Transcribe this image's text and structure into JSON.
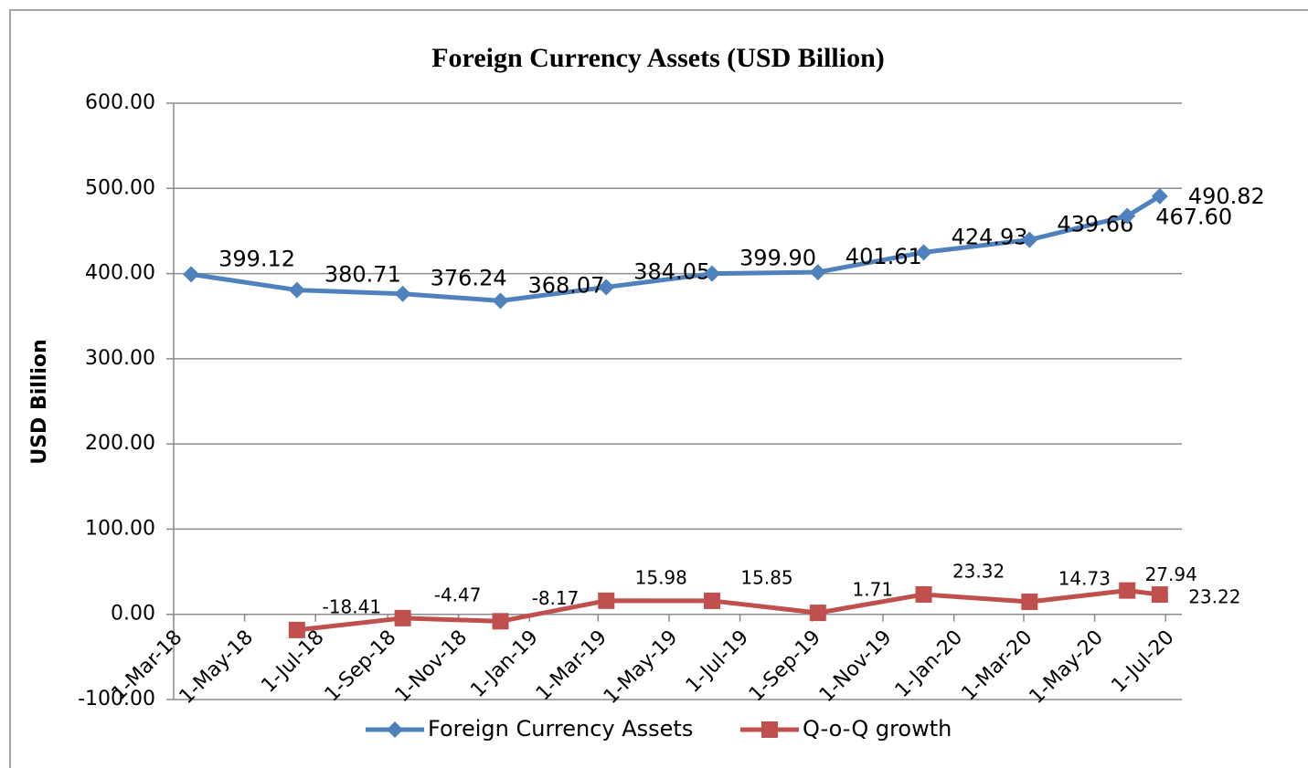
{
  "chart_data": {
    "type": "line",
    "title": "Foreign Currency Assets  (USD  Billion)",
    "ylabel": "USD Billion",
    "x": [
      "2018-03-16",
      "2018-06-15",
      "2018-09-14",
      "2018-12-07",
      "2019-03-08",
      "2019-06-07",
      "2019-09-06",
      "2019-12-06",
      "2020-03-06",
      "2020-05-29",
      "2020-06-26"
    ],
    "series": [
      {
        "name": "Foreign Currency Assets",
        "color": "#4f81bd",
        "marker": "diamond",
        "values": [
          399.12,
          380.71,
          376.24,
          368.07,
          384.05,
          399.9,
          401.61,
          424.93,
          439.66,
          467.6,
          490.82
        ],
        "value_labels": [
          "399.12",
          "380.71",
          "376.24",
          "368.07",
          "384.05",
          "399.90",
          "401.61",
          "424.93",
          "439.66",
          "467.60",
          "490.82"
        ]
      },
      {
        "name": "Q-o-Q growth",
        "color": "#c0504d",
        "marker": "square",
        "values": [
          null,
          -18.41,
          -4.47,
          -8.17,
          15.98,
          15.85,
          1.71,
          23.32,
          14.73,
          27.94,
          23.22
        ],
        "value_labels": [
          null,
          "-18.41",
          "-4.47",
          "-8.17",
          "15.98",
          "15.85",
          "1.71",
          "23.32",
          "14.73",
          "27.94",
          "23.22"
        ]
      }
    ],
    "xlim": [
      "2018-03-01",
      "2020-07-15"
    ],
    "xticks": [
      {
        "value": "2018-03-01",
        "label": "1-Mar-18"
      },
      {
        "value": "2018-05-01",
        "label": "1-May-18"
      },
      {
        "value": "2018-07-01",
        "label": "1-Jul-18"
      },
      {
        "value": "2018-09-01",
        "label": "1-Sep-18"
      },
      {
        "value": "2018-11-01",
        "label": "1-Nov-18"
      },
      {
        "value": "2019-01-01",
        "label": "1-Jan-19"
      },
      {
        "value": "2019-03-01",
        "label": "1-Mar-19"
      },
      {
        "value": "2019-05-01",
        "label": "1-May-19"
      },
      {
        "value": "2019-07-01",
        "label": "1-Jul-19"
      },
      {
        "value": "2019-09-01",
        "label": "1-Sep-19"
      },
      {
        "value": "2019-11-01",
        "label": "1-Nov-19"
      },
      {
        "value": "2020-01-01",
        "label": "1-Jan-20"
      },
      {
        "value": "2020-03-01",
        "label": "1-Mar-20"
      },
      {
        "value": "2020-05-01",
        "label": "1-May-20"
      },
      {
        "value": "2020-07-01",
        "label": "1-Jul-20"
      }
    ],
    "ylim": [
      -100,
      600
    ],
    "yticks": [
      {
        "value": -100,
        "label": "-100.00"
      },
      {
        "value": 0,
        "label": "0.00"
      },
      {
        "value": 100,
        "label": "100.00"
      },
      {
        "value": 200,
        "label": "200.00"
      },
      {
        "value": 300,
        "label": "300.00"
      },
      {
        "value": 400,
        "label": "400.00"
      },
      {
        "value": 500,
        "label": "500.00"
      },
      {
        "value": 600,
        "label": "600.00"
      }
    ],
    "grid": true,
    "legend": "bottom"
  }
}
